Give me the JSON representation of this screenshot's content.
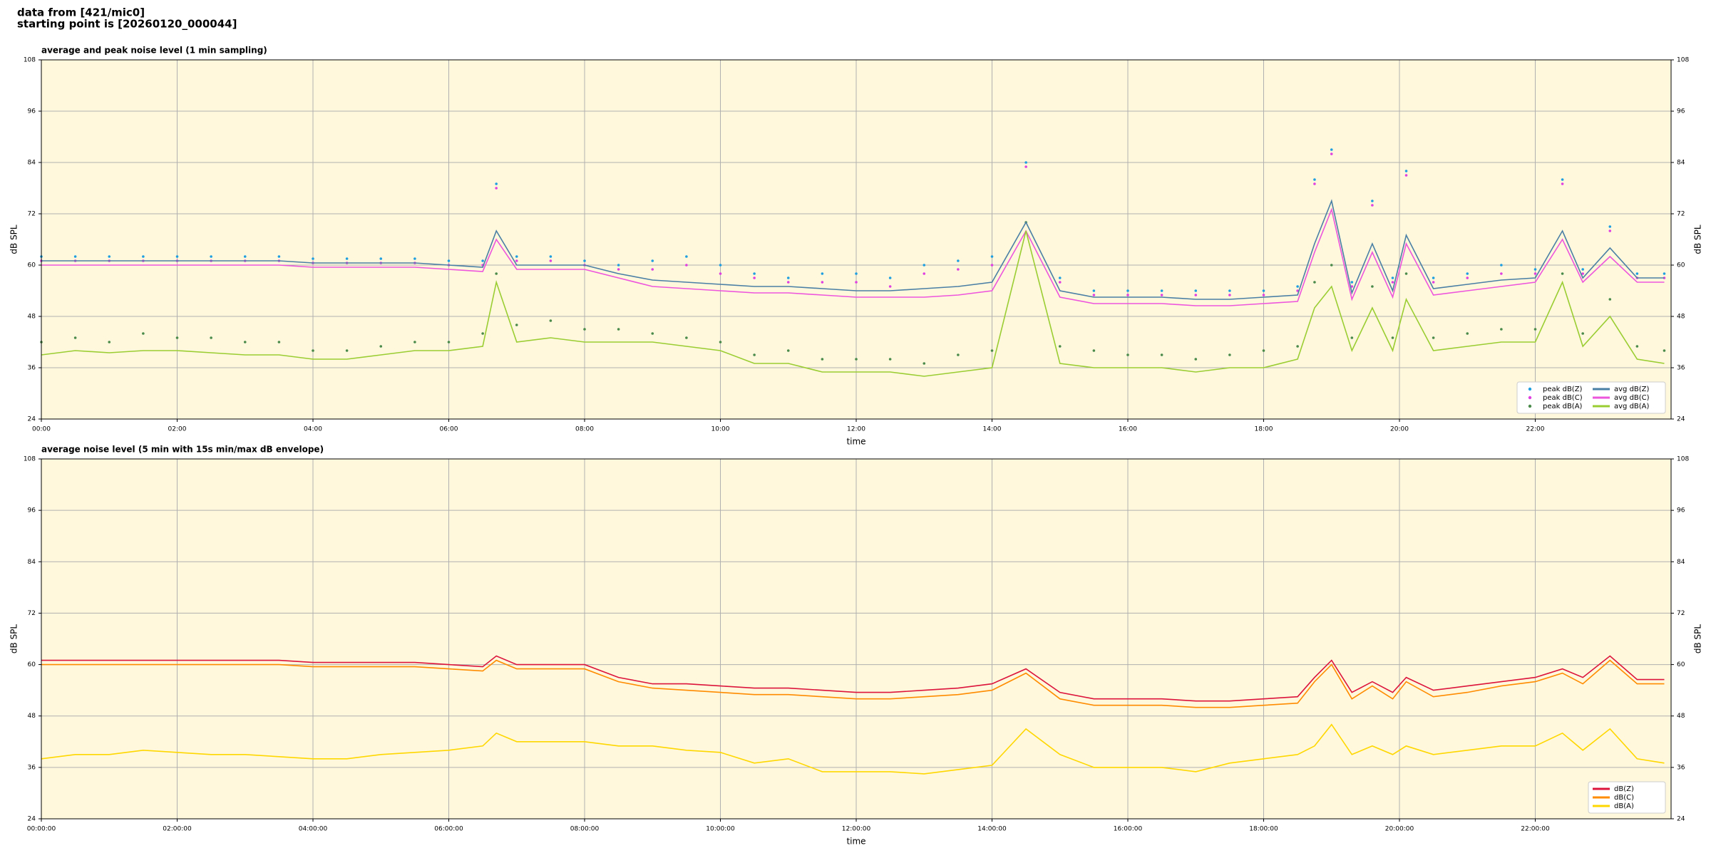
{
  "header": {
    "line1": "data from [421/mic0]",
    "line2": "starting point is [20260120_000044]"
  },
  "chart_data": [
    {
      "type": "line",
      "title": "average and peak noise level (1 min sampling)",
      "x_label": "time",
      "y_label": "dB SPL",
      "xlim": [
        0,
        24
      ],
      "xticks": [
        {
          "value": 0,
          "label": "00:00"
        },
        {
          "value": 2,
          "label": "02:00"
        },
        {
          "value": 4,
          "label": "04:00"
        },
        {
          "value": 6,
          "label": "06:00"
        },
        {
          "value": 8,
          "label": "08:00"
        },
        {
          "value": 10,
          "label": "10:00"
        },
        {
          "value": 12,
          "label": "12:00"
        },
        {
          "value": 14,
          "label": "14:00"
        },
        {
          "value": 16,
          "label": "16:00"
        },
        {
          "value": 18,
          "label": "18:00"
        },
        {
          "value": 20,
          "label": "20:00"
        },
        {
          "value": 22,
          "label": "22:00"
        }
      ],
      "ylim": [
        24,
        108
      ],
      "yticks": [
        24,
        36,
        48,
        60,
        72,
        84,
        96,
        108
      ],
      "grid": true,
      "legend": "lower right",
      "legend_columns": 2,
      "x": [
        0,
        0.5,
        1,
        1.5,
        2,
        2.5,
        3,
        3.5,
        4,
        4.5,
        5,
        5.5,
        6,
        6.5,
        6.7,
        7,
        7.5,
        8,
        8.5,
        9,
        9.5,
        10,
        10.5,
        11,
        11.5,
        12,
        12.5,
        13,
        13.5,
        14,
        14.5,
        15,
        15.5,
        16,
        16.5,
        17,
        17.5,
        18,
        18.5,
        18.75,
        19,
        19.3,
        19.6,
        19.9,
        20.1,
        20.5,
        21,
        21.5,
        22,
        22.4,
        22.7,
        23.1,
        23.5,
        23.9
      ],
      "series": [
        {
          "name": "peak dB(Z)",
          "color": "#1f9fe0",
          "style": "scatter",
          "values": [
            62,
            62,
            62,
            62,
            62,
            62,
            62,
            62,
            61.5,
            61.5,
            61.5,
            61.5,
            61,
            61,
            79,
            62,
            62,
            61,
            60,
            61,
            62,
            60,
            58,
            57,
            58,
            58,
            57,
            60,
            61,
            62,
            84,
            57,
            54,
            54,
            54,
            54,
            54,
            54,
            55,
            80,
            87,
            56,
            75,
            57,
            82,
            57,
            58,
            60,
            59,
            80,
            59,
            69,
            58,
            58
          ]
        },
        {
          "name": "peak dB(C)",
          "color": "#e040e0",
          "style": "scatter",
          "values": [
            61,
            61,
            61,
            61,
            61,
            61,
            61,
            61,
            60.5,
            60.5,
            60.5,
            60.5,
            60,
            60,
            78,
            61,
            61,
            60,
            59,
            59,
            60,
            58,
            57,
            56,
            56,
            56,
            55,
            58,
            59,
            60,
            83,
            56,
            53,
            53,
            53,
            53,
            53,
            53,
            54,
            79,
            86,
            55,
            74,
            56,
            81,
            56,
            57,
            58,
            58,
            79,
            58,
            68,
            57,
            57
          ]
        },
        {
          "name": "peak dB(A)",
          "color": "#4a8a4a",
          "style": "scatter",
          "values": [
            42,
            43,
            42,
            44,
            43,
            43,
            42,
            42,
            40,
            40,
            41,
            42,
            42,
            44,
            58,
            46,
            47,
            45,
            45,
            44,
            43,
            42,
            39,
            40,
            38,
            38,
            38,
            37,
            39,
            40,
            70,
            41,
            40,
            39,
            39,
            38,
            39,
            40,
            41,
            56,
            60,
            43,
            55,
            43,
            58,
            43,
            44,
            45,
            45,
            58,
            44,
            52,
            41,
            40
          ]
        },
        {
          "name": "avg dB(Z)",
          "color": "#4a7fa5",
          "style": "line",
          "values": [
            61,
            61,
            61,
            61,
            61,
            61,
            61,
            61,
            60.5,
            60.5,
            60.5,
            60.5,
            60,
            59.5,
            68,
            60,
            60,
            60,
            58,
            56.5,
            56,
            55.5,
            55,
            55,
            54.5,
            54,
            54,
            54.5,
            55,
            56,
            70,
            54,
            52.5,
            52.5,
            52.5,
            52,
            52,
            52.5,
            53,
            65,
            75,
            53.5,
            65,
            54,
            67,
            54.5,
            55.5,
            56.5,
            57,
            68,
            57,
            64,
            57,
            57
          ]
        },
        {
          "name": "avg dB(C)",
          "color": "#ee55dd",
          "style": "line",
          "values": [
            60,
            60,
            60,
            60,
            60,
            60,
            60,
            60,
            59.5,
            59.5,
            59.5,
            59.5,
            59,
            58.5,
            66,
            59,
            59,
            59,
            57,
            55,
            54.5,
            54,
            53.5,
            53.5,
            53,
            52.5,
            52.5,
            52.5,
            53,
            54,
            68,
            52.5,
            51,
            51,
            51,
            50.5,
            50.5,
            51,
            51.5,
            63,
            73,
            52,
            63,
            52.5,
            65,
            53,
            54,
            55,
            56,
            66,
            56,
            62,
            56,
            56
          ]
        },
        {
          "name": "avg dB(A)",
          "color": "#9acd32",
          "style": "line",
          "values": [
            39,
            40,
            39.5,
            40,
            40,
            39.5,
            39,
            39,
            38,
            38,
            39,
            40,
            40,
            41,
            56,
            42,
            43,
            42,
            42,
            42,
            41,
            40,
            37,
            37,
            35,
            35,
            35,
            34,
            35,
            36,
            68,
            37,
            36,
            36,
            36,
            35,
            36,
            36,
            38,
            50,
            55,
            40,
            50,
            40,
            52,
            40,
            41,
            42,
            42,
            56,
            41,
            48,
            38,
            37
          ]
        }
      ]
    },
    {
      "type": "line",
      "title": "average noise level (5 min with 15s min/max dB envelope)",
      "x_label": "time",
      "y_label": "dB SPL",
      "xlim": [
        0,
        24
      ],
      "xticks": [
        {
          "value": 0,
          "label": "00:00:00"
        },
        {
          "value": 2,
          "label": "02:00:00"
        },
        {
          "value": 4,
          "label": "04:00:00"
        },
        {
          "value": 6,
          "label": "06:00:00"
        },
        {
          "value": 8,
          "label": "08:00:00"
        },
        {
          "value": 10,
          "label": "10:00:00"
        },
        {
          "value": 12,
          "label": "12:00:00"
        },
        {
          "value": 14,
          "label": "14:00:00"
        },
        {
          "value": 16,
          "label": "16:00:00"
        },
        {
          "value": 18,
          "label": "18:00:00"
        },
        {
          "value": 20,
          "label": "20:00:00"
        },
        {
          "value": 22,
          "label": "22:00:00"
        }
      ],
      "ylim": [
        24,
        108
      ],
      "yticks": [
        24,
        36,
        48,
        60,
        72,
        84,
        96,
        108
      ],
      "grid": true,
      "legend": "lower right",
      "legend_columns": 1,
      "x": [
        0,
        0.5,
        1,
        1.5,
        2,
        2.5,
        3,
        3.5,
        4,
        4.5,
        5,
        5.5,
        6,
        6.5,
        6.7,
        7,
        7.5,
        8,
        8.5,
        9,
        9.5,
        10,
        10.5,
        11,
        11.5,
        12,
        12.5,
        13,
        13.5,
        14,
        14.5,
        15,
        15.5,
        16,
        16.5,
        17,
        17.5,
        18,
        18.5,
        18.75,
        19,
        19.3,
        19.6,
        19.9,
        20.1,
        20.5,
        21,
        21.5,
        22,
        22.4,
        22.7,
        23.1,
        23.5,
        23.9
      ],
      "series": [
        {
          "name": "dB(Z)",
          "color": "#dc143c",
          "style": "line",
          "values": [
            61,
            61,
            61,
            61,
            61,
            61,
            61,
            61,
            60.5,
            60.5,
            60.5,
            60.5,
            60,
            59.5,
            62,
            60,
            60,
            60,
            57,
            55.5,
            55.5,
            55,
            54.5,
            54.5,
            54,
            53.5,
            53.5,
            54,
            54.5,
            55.5,
            59,
            53.5,
            52,
            52,
            52,
            51.5,
            51.5,
            52,
            52.5,
            57,
            61,
            53.5,
            56,
            53.5,
            57,
            54,
            55,
            56,
            57,
            59,
            57,
            62,
            56.5,
            56.5
          ]
        },
        {
          "name": "dB(C)",
          "color": "#ff8c00",
          "style": "line",
          "values": [
            60,
            60,
            60,
            60,
            60,
            60,
            60,
            60,
            59.5,
            59.5,
            59.5,
            59.5,
            59,
            58.5,
            61,
            59,
            59,
            59,
            56,
            54.5,
            54,
            53.5,
            53,
            53,
            52.5,
            52,
            52,
            52.5,
            53,
            54,
            58,
            52,
            50.5,
            50.5,
            50.5,
            50,
            50,
            50.5,
            51,
            56,
            60,
            52,
            55,
            52,
            56,
            52.5,
            53.5,
            55,
            56,
            58,
            55.5,
            61,
            55.5,
            55.5
          ]
        },
        {
          "name": "dB(A)",
          "color": "#ffd700",
          "style": "line",
          "values": [
            38,
            39,
            39,
            40,
            39.5,
            39,
            39,
            38.5,
            38,
            38,
            39,
            39.5,
            40,
            41,
            44,
            42,
            42,
            42,
            41,
            41,
            40,
            39.5,
            37,
            38,
            35,
            35,
            35,
            34.5,
            35.5,
            36.5,
            45,
            39,
            36,
            36,
            36,
            35,
            37,
            38,
            39,
            41,
            46,
            39,
            41,
            39,
            41,
            39,
            40,
            41,
            41,
            44,
            40,
            45,
            38,
            37
          ]
        }
      ]
    }
  ]
}
